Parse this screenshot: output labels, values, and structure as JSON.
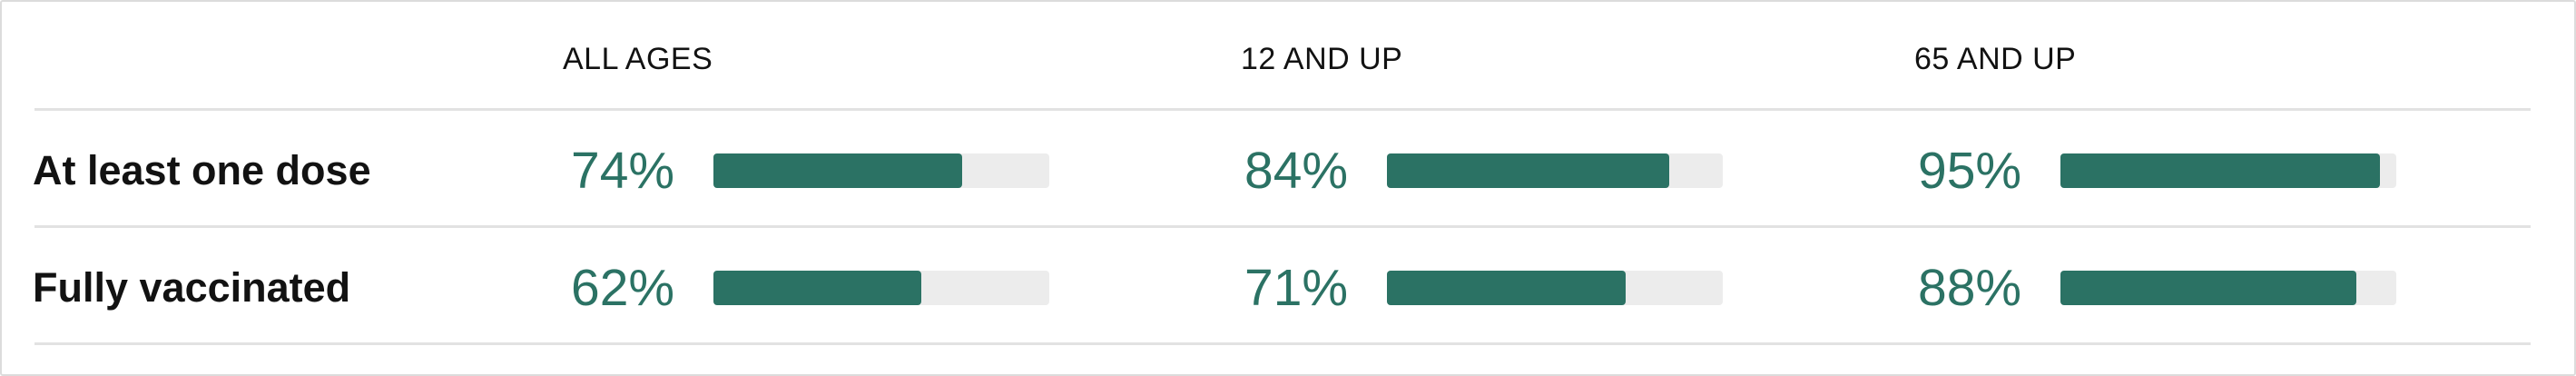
{
  "chart_data": {
    "type": "table",
    "columns": [
      "ALL AGES",
      "12 AND UP",
      "65 AND UP"
    ],
    "rows": [
      {
        "label": "At least one dose",
        "values": [
          74,
          84,
          95
        ],
        "display": [
          "74%",
          "84%",
          "95%"
        ]
      },
      {
        "label": "Fully vaccinated",
        "values": [
          62,
          71,
          88
        ],
        "display": [
          "62%",
          "71%",
          "88%"
        ]
      }
    ],
    "value_range": [
      0,
      100
    ],
    "unit": "%",
    "colors": {
      "bar": "#2b7264",
      "track": "#ececec",
      "text_value": "#2b7264"
    }
  }
}
